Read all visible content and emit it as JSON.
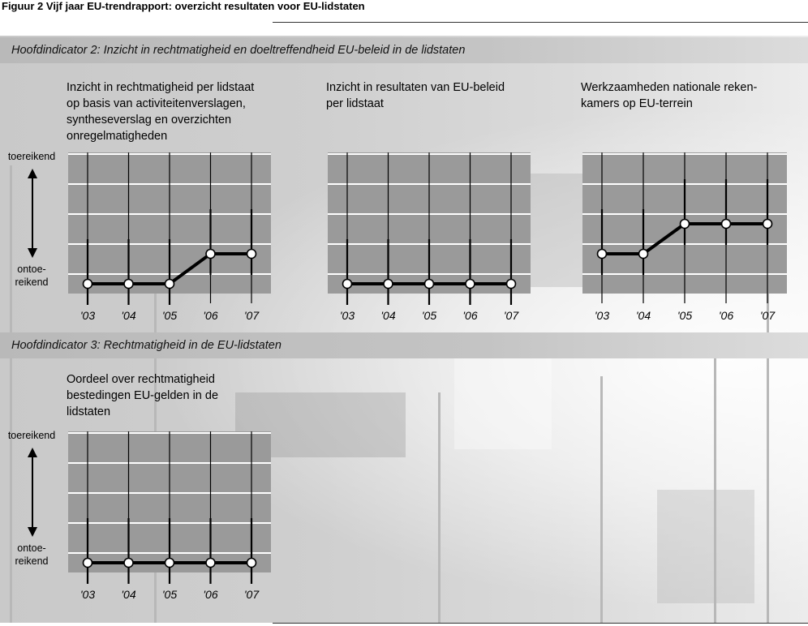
{
  "figure_title": "Figuur 2  Vijf jaar EU-trendrapport: overzicht resultaten voor EU-lidstaten",
  "sections": [
    {
      "label": "Hoofdindicator 2: Inzicht in rechtmatigheid en doeltreffendheid EU-beleid in de lidstaten"
    },
    {
      "label": "Hoofdindicator 3: Rechtmatigheid in de EU-lidstaten"
    }
  ],
  "axis_labels": {
    "top": "toereikend",
    "bottom_line1": "ontoe-",
    "bottom_line2": "reikend"
  },
  "colors": {
    "plot_bg": "#9a9a9a",
    "line": "#000000",
    "marker_fill": "#ffffff",
    "grid": "#ffffff"
  },
  "chart_data": [
    {
      "type": "line",
      "title": "Inzicht in rechtmatigheid per lidstaat op basis van activiteitenverslagen, syntheseverslag en overzichten onregelmatigheden",
      "title_lines": [
        "Inzicht in rechtmatigheid per lidstaat",
        "op basis van activiteitenverslagen,",
        "syntheseverslag en overzichten",
        "onregelmatigheden"
      ],
      "categories": [
        "'03",
        "'04",
        "'05",
        "'06",
        "'07"
      ],
      "values": [
        0,
        0,
        0,
        1,
        1
      ],
      "ylim": [
        0,
        4
      ],
      "grid": true
    },
    {
      "type": "line",
      "title": "Inzicht in resultaten van EU-beleid per lidstaat",
      "title_lines": [
        "Inzicht in resultaten van EU-beleid",
        "per lidstaat"
      ],
      "categories": [
        "'03",
        "'04",
        "'05",
        "'06",
        "'07"
      ],
      "values": [
        0,
        0,
        0,
        0,
        0
      ],
      "ylim": [
        0,
        4
      ],
      "grid": true
    },
    {
      "type": "line",
      "title": "Werkzaamheden nationale rekenkamers op EU-terrein",
      "title_lines": [
        "Werkzaamheden nationale reken-",
        "kamers op EU-terrein"
      ],
      "categories": [
        "'03",
        "'04",
        "'05",
        "'06",
        "'07"
      ],
      "values": [
        1,
        1,
        2,
        2,
        2
      ],
      "ylim": [
        0,
        4
      ],
      "grid": true
    },
    {
      "type": "line",
      "title": "Oordeel over rechtmatigheid bestedingen EU-gelden in de lidstaten",
      "title_lines": [
        "Oordeel over rechtmatigheid",
        "bestedingen EU-gelden in de",
        "lidstaten"
      ],
      "categories": [
        "'03",
        "'04",
        "'05",
        "'06",
        "'07"
      ],
      "values": [
        0,
        0,
        0,
        0,
        0
      ],
      "ylim": [
        0,
        4
      ],
      "grid": true
    }
  ]
}
